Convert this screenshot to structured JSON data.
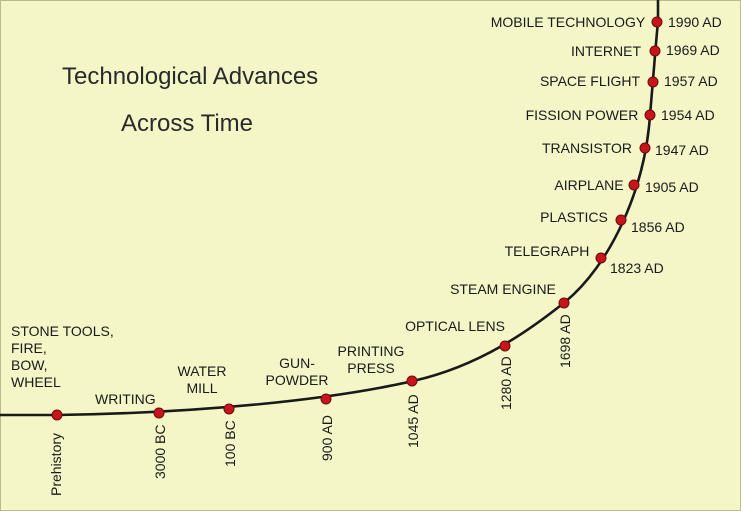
{
  "title": {
    "line1": "Technological Advances",
    "line2": "Across Time"
  },
  "colors": {
    "background": "#f4f6c8",
    "curve": "#1a1a1a",
    "marker": "#c8151b"
  },
  "events": [
    {
      "id": "prehistory",
      "label_lines": [
        "STONE  TOOLS,",
        "FIRE,",
        "BOW,",
        "WHEEL"
      ],
      "date": "Prehistory"
    },
    {
      "id": "writing",
      "label_lines": [
        "WRITING"
      ],
      "date": "3000 BC"
    },
    {
      "id": "water-mill",
      "label_lines": [
        "WATER",
        "MILL"
      ],
      "date": "100 BC"
    },
    {
      "id": "gunpowder",
      "label_lines": [
        "GUN-",
        "POWDER"
      ],
      "date": "900 AD"
    },
    {
      "id": "printing-press",
      "label_lines": [
        "PRINTING",
        "PRESS"
      ],
      "date": "1045 AD"
    },
    {
      "id": "optical-lens",
      "label_lines": [
        "OPTICAL LENS"
      ],
      "date": "1280 AD"
    },
    {
      "id": "steam-engine",
      "label_lines": [
        "STEAM ENGINE"
      ],
      "date": "1698 AD"
    },
    {
      "id": "telegraph",
      "label_lines": [
        "TELEGRAPH"
      ],
      "date": "1823 AD"
    },
    {
      "id": "plastics",
      "label_lines": [
        "PLASTICS"
      ],
      "date": "1856 AD"
    },
    {
      "id": "airplane",
      "label_lines": [
        "AIRPLANE"
      ],
      "date": "1905 AD"
    },
    {
      "id": "transistor",
      "label_lines": [
        "TRANSISTOR"
      ],
      "date": "1947 AD"
    },
    {
      "id": "fission-power",
      "label_lines": [
        "FISSION POWER"
      ],
      "date": "1954 AD"
    },
    {
      "id": "space-flight",
      "label_lines": [
        "SPACE FLIGHT"
      ],
      "date": "1957 AD"
    },
    {
      "id": "internet",
      "label_lines": [
        "INTERNET"
      ],
      "date": "1969 AD"
    },
    {
      "id": "mobile-technology",
      "label_lines": [
        "MOBILE TECHNOLOGY"
      ],
      "date": "1990 AD"
    }
  ]
}
